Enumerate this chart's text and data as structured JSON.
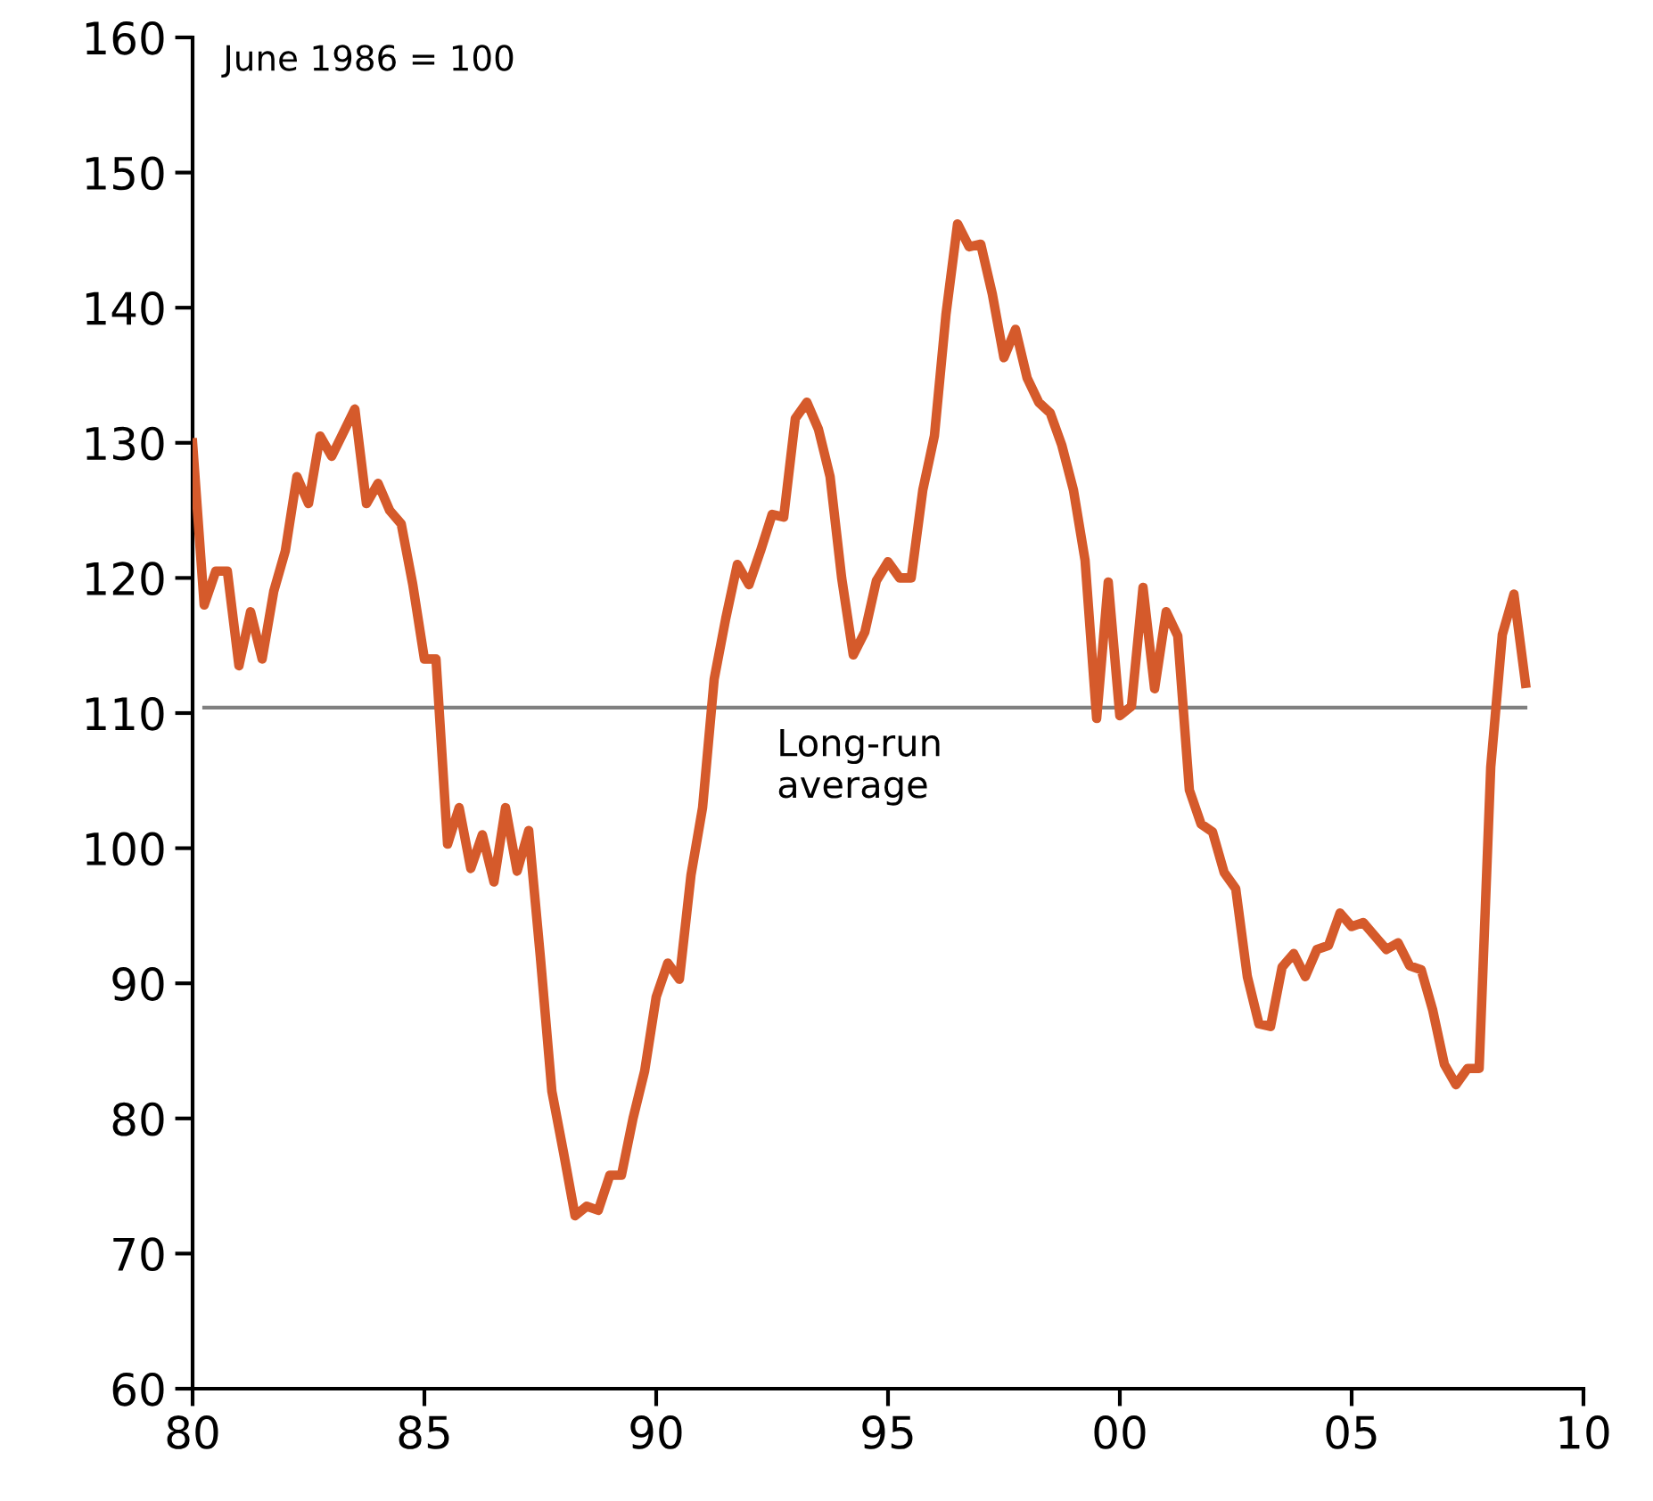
{
  "chart_data": {
    "type": "line",
    "annotations": [
      "June 1986 = 100"
    ],
    "x": [
      1980.0,
      1980.25,
      1980.5,
      1980.75,
      1981.0,
      1981.25,
      1981.5,
      1981.75,
      1982.0,
      1982.25,
      1982.5,
      1982.75,
      1983.0,
      1983.5,
      1983.75,
      1984.0,
      1984.25,
      1984.5,
      1984.75,
      1985.0,
      1985.25,
      1985.5,
      1985.75,
      1986.0,
      1986.25,
      1986.5,
      1986.75,
      1987.0,
      1987.25,
      1987.5,
      1987.75,
      1988.0,
      1988.25,
      1988.5,
      1988.75,
      1989.0,
      1989.25,
      1989.5,
      1989.75,
      1990.0,
      1990.25,
      1990.5,
      1990.75,
      1991.0,
      1991.25,
      1991.5,
      1991.75,
      1992.0,
      1992.25,
      1992.5,
      1992.75,
      1993.0,
      1993.25,
      1993.5,
      1993.75,
      1994.0,
      1994.25,
      1994.5,
      1994.75,
      1995.0,
      1995.25,
      1995.5,
      1995.75,
      1996.0,
      1996.25,
      1996.5,
      1996.75,
      1997.0,
      1997.25,
      1997.5,
      1997.75,
      1998.0,
      1998.25,
      1998.5,
      1998.75,
      1999.0,
      1999.25,
      1999.5,
      1999.75,
      2000.0,
      2000.25,
      2000.5,
      2000.75,
      2001.0,
      2001.25,
      2001.5,
      2001.75,
      2002.0,
      2002.25,
      2002.5,
      2002.75,
      2003.0,
      2003.25,
      2003.5,
      2003.75,
      2004.0,
      2004.25,
      2004.5,
      2004.75,
      2005.0,
      2005.25,
      2005.5,
      2005.75,
      2006.0,
      2006.25,
      2006.5,
      2006.75,
      2007.0,
      2007.25,
      2007.5,
      2007.75,
      2008.0,
      2008.25,
      2008.5,
      2008.75
    ],
    "series": [
      {
        "color": "#d55a2b",
        "values": [
          130,
          118,
          120.5,
          120.5,
          113.5,
          117.5,
          114,
          119,
          122,
          127.5,
          125.5,
          130.5,
          129,
          132.5,
          125.5,
          127,
          125,
          124,
          119.5,
          114,
          114,
          100.3,
          103,
          98.5,
          101,
          97.5,
          103,
          98.3,
          101.3,
          92,
          82,
          77.5,
          72.8,
          73.5,
          73.2,
          75.8,
          75.8,
          80,
          83.5,
          89,
          91.5,
          90.3,
          98,
          103,
          112.5,
          117,
          121,
          119.5,
          122,
          124.7,
          124.5,
          131.8,
          133,
          131,
          127.5,
          120,
          114.3,
          116,
          119.8,
          121.2,
          120,
          120,
          126.5,
          130.5,
          139.5,
          146.2,
          144.5,
          144.7,
          141,
          136.3,
          138.4,
          134.8,
          133,
          132.2,
          129.8,
          126.5,
          121.3,
          109.6,
          119.7,
          109.8,
          110.5,
          119.3,
          111.8,
          117.5,
          115.7,
          104.3,
          101.8,
          101.2,
          98.2,
          97,
          90.5,
          87,
          86.8,
          91.2,
          92.2,
          90.5,
          92.5,
          92.8,
          95.2,
          94.2,
          94.5,
          93.5,
          92.5,
          93,
          91.3,
          91,
          88,
          84,
          82.5,
          83.7,
          83.7,
          106,
          115.8,
          118.8,
          112.2
        ]
      }
    ],
    "ref_lines": [
      {
        "axis": "y",
        "value": 110.4,
        "label": "Long-run\naverage",
        "color": "#808080"
      }
    ],
    "xlim": [
      1980,
      2010
    ],
    "xticks": [
      {
        "value": 1980,
        "label": "80"
      },
      {
        "value": 1985,
        "label": "85"
      },
      {
        "value": 1990,
        "label": "90"
      },
      {
        "value": 1995,
        "label": "95"
      },
      {
        "value": 2000,
        "label": "00"
      },
      {
        "value": 2005,
        "label": "05"
      },
      {
        "value": 2010,
        "label": "10"
      }
    ],
    "ylim": [
      60,
      160
    ],
    "yticks": [
      60,
      70,
      80,
      90,
      100,
      110,
      120,
      130,
      140,
      150,
      160
    ],
    "grid": false,
    "marker": "none",
    "line_style": "solid"
  }
}
